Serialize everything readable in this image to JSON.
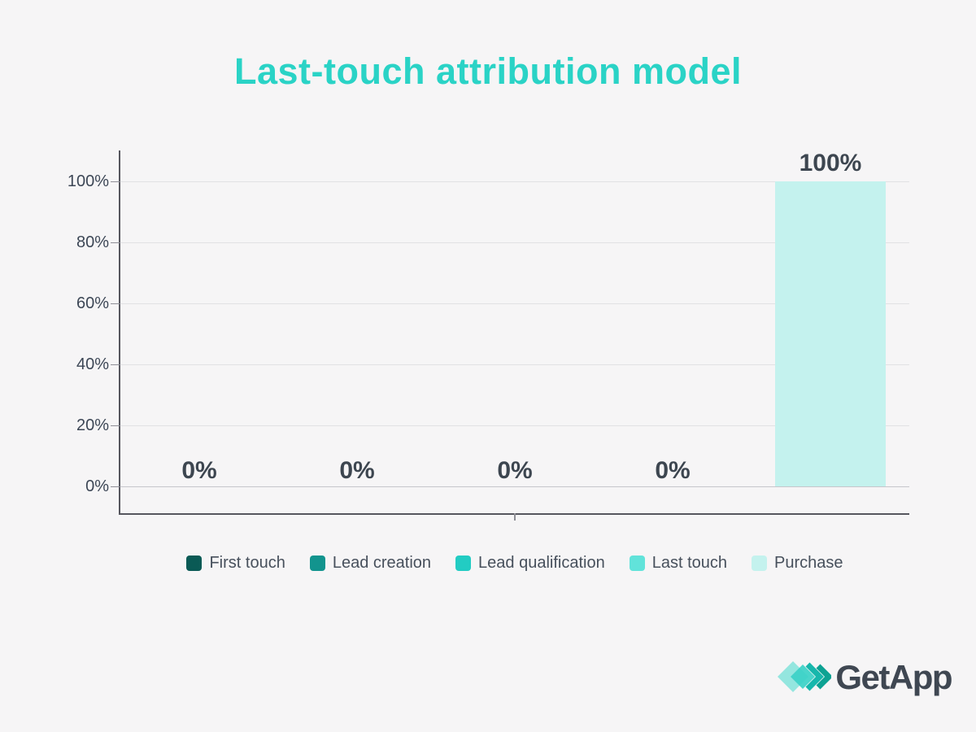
{
  "title": {
    "text": "Last-touch attribution model"
  },
  "chart_data": {
    "type": "bar",
    "title": "Last-touch attribution model",
    "categories": [
      "First touch",
      "Lead creation",
      "Lead qualification",
      "Last touch",
      "Purchase"
    ],
    "values": [
      0,
      0,
      0,
      0,
      100
    ],
    "value_labels": [
      "0%",
      "0%",
      "0%",
      "0%",
      "100%"
    ],
    "bar_colors": [
      "#0a5a55",
      "#12948e",
      "#22ccc3",
      "#61e3da",
      "#c4f2ee"
    ],
    "xlabel": "",
    "ylabel": "",
    "ylim": [
      0,
      100
    ],
    "yticks": [
      0,
      20,
      40,
      60,
      80,
      100
    ],
    "ytick_labels": [
      "0%",
      "20%",
      "40%",
      "60%",
      "80%",
      "100%"
    ],
    "grid": true,
    "legend_position": "bottom"
  },
  "logo": {
    "text": "GetApp",
    "mark_colors": [
      "#8ae4dd",
      "#3bd1c7",
      "#17b7ac",
      "#0da293"
    ]
  },
  "colors": {
    "background": "#f6f5f6",
    "title": "#2ad3c6",
    "axis_line": "#56565e",
    "gridline": "#e1e1e4",
    "zero_line": "#c6c6cb",
    "tick": "#8e8e95",
    "value_label_text": "#3d4650",
    "ytick_label_text": "#3d4756",
    "legend_text": "#47505c",
    "logo_text": "#3f4752"
  }
}
